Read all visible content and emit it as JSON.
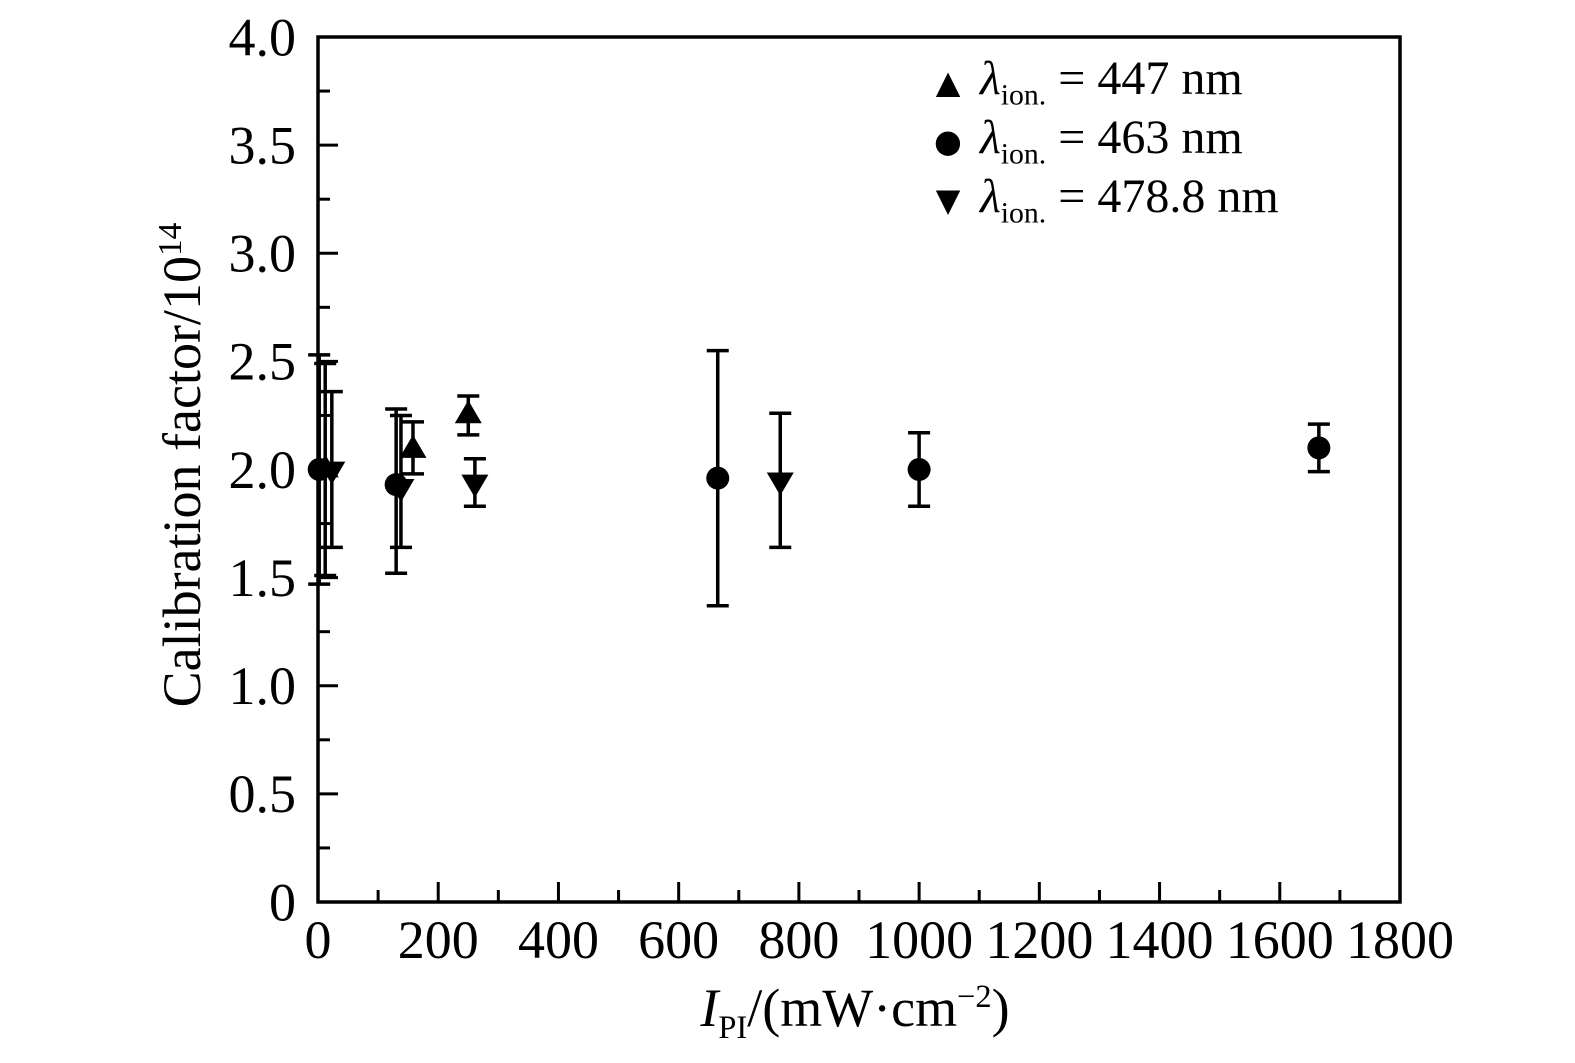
{
  "page": {
    "background": "#ffffff"
  },
  "chart_data": {
    "type": "scatter",
    "title": "",
    "ylabel_plain": "Calibration factor/10^14",
    "xlabel_plain": "I_PI/(mW·cm^−2)",
    "ylabel": {
      "text": "Calibration factor/10",
      "sup": "14"
    },
    "xlabel": {
      "italic": "I",
      "sub": "PI",
      "mid": "/(mW·cm",
      "sup": "−2",
      "end": ")"
    },
    "xlim": [
      0,
      1800
    ],
    "ylim": [
      0,
      4.0
    ],
    "x_minor_step": 100,
    "y_minor_step": 0.25,
    "grid": false,
    "legend_position": "top-right",
    "color": "#000000",
    "background": "#ffffff",
    "x_ticks": [
      {
        "value": 0,
        "label": "0"
      },
      {
        "value": 200,
        "label": "200"
      },
      {
        "value": 400,
        "label": "400"
      },
      {
        "value": 600,
        "label": "600"
      },
      {
        "value": 800,
        "label": "800"
      },
      {
        "value": 1000,
        "label": "1000"
      },
      {
        "value": 1200,
        "label": "1200"
      },
      {
        "value": 1400,
        "label": "1400"
      },
      {
        "value": 1600,
        "label": "1600"
      },
      {
        "value": 1800,
        "label": "1800"
      }
    ],
    "y_ticks": [
      {
        "value": 0,
        "label": "0"
      },
      {
        "value": 0.5,
        "label": "0.5"
      },
      {
        "value": 1.0,
        "label": "1.0"
      },
      {
        "value": 1.5,
        "label": "1.5"
      },
      {
        "value": 2.0,
        "label": "2.0"
      },
      {
        "value": 2.5,
        "label": "2.5"
      },
      {
        "value": 3.0,
        "label": "3.0"
      },
      {
        "value": 3.5,
        "label": "3.5"
      },
      {
        "value": 4.0,
        "label": "4.0"
      }
    ],
    "series": [
      {
        "name": "447 nm",
        "marker": "triangle-up",
        "legend": {
          "glyph": "▲",
          "lambda": "λ",
          "sub": "ion.",
          "rest": "= 447 nm"
        },
        "points": [
          {
            "x": 12,
            "y": 2.01,
            "ylo": 1.51,
            "yhi": 2.49
          },
          {
            "x": 158,
            "y": 2.1,
            "ylo": 1.98,
            "yhi": 2.22
          },
          {
            "x": 250,
            "y": 2.26,
            "ylo": 2.16,
            "yhi": 2.34
          }
        ]
      },
      {
        "name": "463 nm",
        "marker": "circle",
        "legend": {
          "glyph": "●",
          "lambda": "λ",
          "sub": "ion.",
          "rest": "= 463 nm"
        },
        "points": [
          {
            "x": 2,
            "y": 2.0,
            "ylo": 1.47,
            "yhi": 2.53
          },
          {
            "x": 130,
            "y": 1.93,
            "ylo": 1.52,
            "yhi": 2.28
          },
          {
            "x": 665,
            "y": 1.96,
            "ylo": 1.37,
            "yhi": 2.55
          },
          {
            "x": 1000,
            "y": 2.0,
            "ylo": 1.83,
            "yhi": 2.17
          },
          {
            "x": 1665,
            "y": 2.1,
            "ylo": 1.99,
            "yhi": 2.21
          }
        ]
      },
      {
        "name": "478.8 nm",
        "marker": "triangle-down",
        "legend": {
          "glyph": "▼",
          "lambda": "λ",
          "sub": "ion.",
          "rest": "= 478.8 nm"
        },
        "points": [
          {
            "x": 23,
            "y": 1.99,
            "ylo": 1.64,
            "yhi": 2.36
          },
          {
            "x": 138,
            "y": 1.91,
            "ylo": 1.64,
            "yhi": 2.25
          },
          {
            "x": 261,
            "y": 1.93,
            "ylo": 1.83,
            "yhi": 2.05
          },
          {
            "x": 769,
            "y": 1.94,
            "ylo": 1.64,
            "yhi": 2.26
          }
        ]
      }
    ]
  }
}
